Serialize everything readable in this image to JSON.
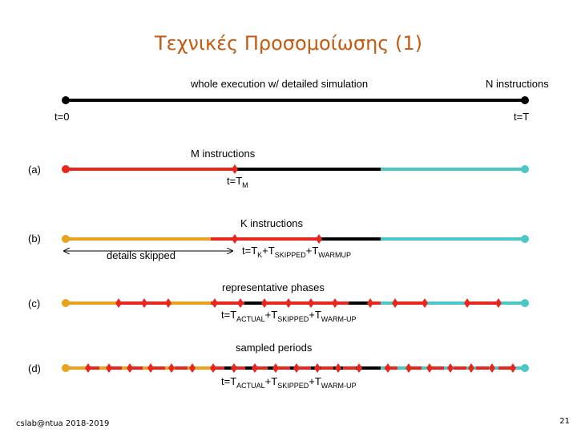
{
  "title": "Τεχνικές Προσομοίωσης (1)",
  "footer": {
    "left": "cslab@ntua 2018-2019",
    "page": "21"
  },
  "colors": {
    "red": "#e8261c",
    "black": "#000000",
    "cyan": "#4bc6c9",
    "orange": "#e8a21c"
  },
  "top": {
    "header": "whole execution w/ detailed simulation",
    "n_label": "N instructions",
    "t0": "t=0",
    "tT": "t=T"
  },
  "a": {
    "row": "(a)",
    "header": "M instructions",
    "t": "t=T",
    "t_sub": "M"
  },
  "b": {
    "row": "(b)",
    "header": "K instructions",
    "skipped": "details skipped",
    "t": "t=T",
    "t_sub1": "K",
    "plus1": "+T",
    "t_sub2": "SKIPPED",
    "plus2": "+T",
    "t_sub3": "WARMUP"
  },
  "c": {
    "row": "(c)",
    "header": "representative phases",
    "t": "t=T",
    "t_sub1": "ACTUAL",
    "plus1": "+T",
    "t_sub2": "SKIPPED",
    "plus2": "+T",
    "t_sub3": "WARM-UP"
  },
  "d": {
    "row": "(d)",
    "header": "sampled periods",
    "t": "t=T",
    "t_sub1": "ACTUAL",
    "plus1": "+T",
    "t_sub2": "SKIPPED",
    "plus2": "+T",
    "t_sub3": "WARM-UP"
  }
}
